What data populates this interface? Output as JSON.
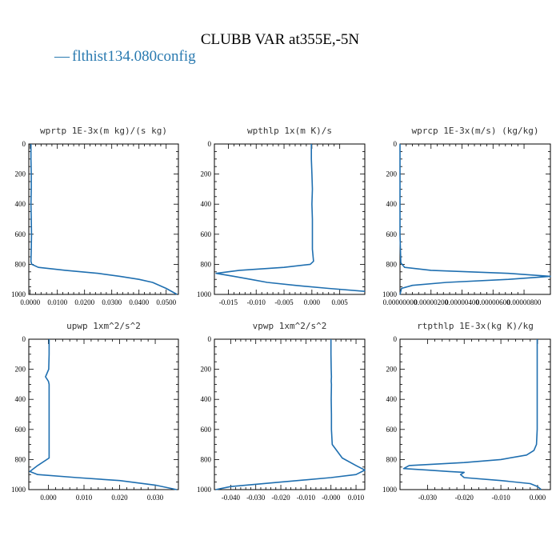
{
  "title": "CLUBB VAR at355E,-5N",
  "legend": {
    "label": "flthist134.080config",
    "color": "#1f6fb0",
    "marker": "—"
  },
  "chart_data": [
    {
      "type": "line",
      "title": "wprtp  1E-3x(m kg)/(s kg)",
      "xlim": [
        -0.0005,
        0.0545
      ],
      "ylim": [
        1000,
        0
      ],
      "xticks": [
        "0.0000",
        "0.0100",
        "0.0200",
        "0.0300",
        "0.0400",
        "0.0500"
      ],
      "xtick_values": [
        0,
        0.01,
        0.02,
        0.03,
        0.04,
        0.05
      ],
      "yticks": [
        "0",
        "200",
        "400",
        "600",
        "800",
        "1000"
      ],
      "ytick_values": [
        0,
        200,
        400,
        600,
        800,
        1000
      ],
      "series": [
        {
          "x": [
            0.0003,
            0.0003,
            0.0004,
            0.0004,
            0.0003,
            0.0004,
            0.0005,
            0.0004,
            0.0003,
            0.0006,
            0.003,
            0.013,
            0.025,
            0.033,
            0.04,
            0.045,
            0.05,
            0.054
          ],
          "y": [
            0,
            100,
            200,
            300,
            400,
            500,
            600,
            700,
            780,
            800,
            820,
            840,
            860,
            880,
            900,
            920,
            960,
            1000
          ]
        }
      ]
    },
    {
      "type": "line",
      "title": "wpthlp  1x(m K)/s",
      "xlim": [
        -0.0175,
        0.0095
      ],
      "ylim": [
        1000,
        0
      ],
      "xticks": [
        "-0.015",
        "-0.010",
        "-0.005",
        "0.000",
        "0.005"
      ],
      "xtick_values": [
        -0.015,
        -0.01,
        -0.005,
        0.0,
        0.005
      ],
      "yticks": [
        "0",
        "200",
        "400",
        "600",
        "800",
        "1000"
      ],
      "ytick_values": [
        0,
        200,
        400,
        600,
        800,
        1000
      ],
      "series": [
        {
          "x": [
            -0.0001,
            -0.0001,
            0.0,
            0.0001,
            0.0,
            0.0001,
            0.0001,
            0.0001,
            0.0003,
            -0.0003,
            -0.005,
            -0.013,
            -0.0172,
            -0.014,
            -0.011,
            -0.008,
            -0.003,
            0.003,
            0.0095
          ],
          "y": [
            0,
            100,
            200,
            300,
            400,
            500,
            600,
            700,
            780,
            800,
            820,
            840,
            860,
            880,
            900,
            920,
            940,
            960,
            980
          ]
        }
      ]
    },
    {
      "type": "line",
      "title": "wprcp  1E-3x(m/s) (kg/kg)",
      "xlim": [
        0,
        9.7e-06
      ],
      "ylim": [
        1000,
        0
      ],
      "xticks": [
        "0.00000000",
        "0.00000200",
        "0.00000400",
        "0.00000600",
        "0.00000800"
      ],
      "xtick_values": [
        0,
        2e-06,
        4e-06,
        6e-06,
        8e-06
      ],
      "yticks": [
        "0",
        "200",
        "400",
        "600",
        "800",
        "1000"
      ],
      "ytick_values": [
        0,
        200,
        400,
        600,
        800,
        1000
      ],
      "series": [
        {
          "x": [
            0,
            0,
            0,
            0,
            5e-08,
            3e-07,
            2e-06,
            7e-06,
            9.7e-06,
            7e-06,
            3e-06,
            8e-07,
            1e-07,
            0
          ],
          "y": [
            0,
            200,
            400,
            600,
            790,
            820,
            840,
            860,
            880,
            900,
            920,
            940,
            960,
            1000
          ]
        }
      ]
    },
    {
      "type": "line",
      "title": "upwp  1xm^2/s^2",
      "xlim": [
        -0.0055,
        0.0365
      ],
      "ylim": [
        1000,
        0
      ],
      "xticks": [
        "0.000",
        "0.010",
        "0.020",
        "0.030"
      ],
      "xtick_values": [
        0,
        0.01,
        0.02,
        0.03
      ],
      "yticks": [
        "0",
        "200",
        "400",
        "600",
        "800",
        "1000"
      ],
      "ytick_values": [
        0,
        200,
        400,
        600,
        800,
        1000
      ],
      "series": [
        {
          "x": [
            0.0002,
            0.0002,
            0.0001,
            -0.0008,
            0.0,
            0.0002,
            0.0002,
            0.0002,
            0.0002,
            0.0002,
            0.0002,
            -0.003,
            -0.0052,
            -0.003,
            0.008,
            0.02,
            0.03,
            0.036
          ],
          "y": [
            0,
            100,
            200,
            250,
            280,
            300,
            400,
            500,
            600,
            700,
            790,
            840,
            880,
            900,
            920,
            940,
            970,
            1000
          ]
        }
      ]
    },
    {
      "type": "line",
      "title": "vpwp  1xm^2/s^2",
      "xlim": [
        -0.0465,
        0.0135
      ],
      "ylim": [
        1000,
        0
      ],
      "xticks": [
        "-0.040",
        "-0.030",
        "-0.020",
        "-0.010",
        "-0.000",
        "0.010"
      ],
      "xtick_values": [
        -0.04,
        -0.03,
        -0.02,
        -0.01,
        0.0,
        0.01
      ],
      "yticks": [
        "0",
        "200",
        "400",
        "600",
        "800",
        "1000"
      ],
      "ytick_values": [
        0,
        200,
        400,
        600,
        800,
        1000
      ],
      "series": [
        {
          "x": [
            0.0,
            0.0,
            0.0001,
            0.0002,
            0.0001,
            0.0002,
            0.0001,
            0.0002,
            0.0002,
            0.0005,
            0.0045,
            0.01,
            0.0135,
            0.01,
            0.0,
            -0.02,
            -0.04,
            -0.046
          ],
          "y": [
            0,
            100,
            200,
            250,
            280,
            300,
            400,
            500,
            600,
            700,
            790,
            840,
            870,
            900,
            920,
            950,
            980,
            1000
          ]
        }
      ]
    },
    {
      "type": "line",
      "title": "rtpthlp  1E-3x(kg K)/kg",
      "xlim": [
        -0.0375,
        0.0035
      ],
      "ylim": [
        1000,
        0
      ],
      "xticks": [
        "-0.030",
        "-0.020",
        "-0.010",
        "0.000"
      ],
      "xtick_values": [
        -0.03,
        -0.02,
        -0.01,
        0.0
      ],
      "yticks": [
        "0",
        "200",
        "400",
        "600",
        "800",
        "1000"
      ],
      "ytick_values": [
        0,
        200,
        400,
        600,
        800,
        1000
      ],
      "series": [
        {
          "x": [
            -0.0001,
            -0.0001,
            -0.0001,
            -0.0001,
            -0.0003,
            -0.001,
            -0.003,
            -0.01,
            -0.02,
            -0.035,
            -0.0365,
            -0.03,
            -0.024,
            -0.02,
            -0.021,
            -0.02,
            -0.01,
            -0.002,
            0.0,
            0.001
          ],
          "y": [
            0,
            200,
            400,
            600,
            700,
            740,
            770,
            800,
            820,
            840,
            860,
            870,
            880,
            885,
            900,
            920,
            940,
            960,
            980,
            1000
          ]
        }
      ]
    }
  ]
}
